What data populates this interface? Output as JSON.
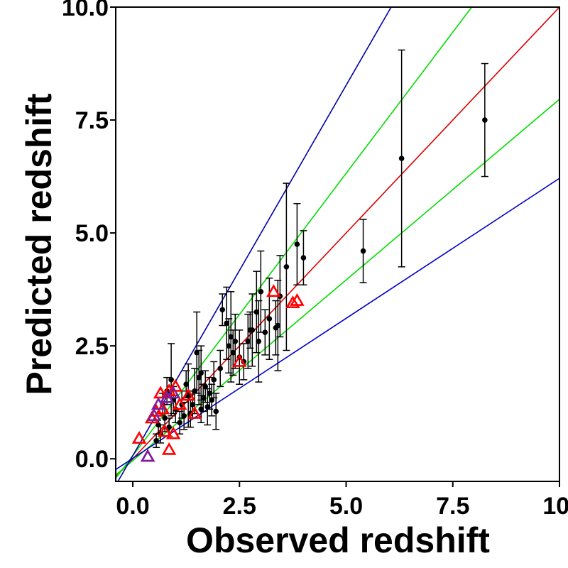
{
  "chart_data": {
    "type": "scatter",
    "xlabel": "Observed redshift",
    "ylabel": "Predicted redshift",
    "xlim": [
      -0.4,
      10.0
    ],
    "ylim": [
      -0.5,
      10.0
    ],
    "xticks": [
      0.0,
      2.5,
      5.0,
      7.5,
      10.0
    ],
    "xtick_labels": [
      "0.0",
      "2.5",
      "5.0",
      "7.5",
      "10."
    ],
    "yticks": [
      0.0,
      2.5,
      5.0,
      7.5,
      10.0
    ],
    "ytick_labels": [
      "0.0",
      "2.5",
      "5.0",
      "7.5",
      "10.0"
    ],
    "grid": false,
    "colors": {
      "points": "#000000",
      "identity_line": "#dd0000",
      "inner_bounds": "#00dd00",
      "outer_bounds": "#0000cc",
      "triangles_red": "#ff0000",
      "triangles_purple": "#7b1fa2"
    },
    "reference_lines": [
      {
        "name": "identity",
        "color": "#dd0000",
        "slope": 1.0,
        "intercept": 0.0
      },
      {
        "name": "upper-inner",
        "color": "#00dd00",
        "slope": 1.25,
        "intercept": 0.07
      },
      {
        "name": "lower-inner",
        "color": "#00dd00",
        "slope": 0.8,
        "intercept": -0.04
      },
      {
        "name": "upper-outer",
        "color": "#0000aa",
        "slope": 1.64,
        "intercept": 0.07
      },
      {
        "name": "lower-outer",
        "color": "#0000cc",
        "slope": 0.62,
        "intercept": 0.01
      }
    ],
    "series": [
      {
        "name": "points-with-errorbars",
        "marker": "circle",
        "x": [
          8.25,
          6.3,
          5.4,
          4.0,
          3.85,
          3.6,
          3.45,
          3.35,
          3.2,
          3.1,
          3.0,
          2.9,
          2.8,
          2.7,
          2.6,
          2.5,
          2.4,
          2.35,
          2.3,
          2.25,
          2.2,
          2.1,
          2.05,
          1.95,
          1.9,
          1.85,
          1.8,
          1.75,
          1.7,
          1.65,
          1.6,
          1.55,
          1.5,
          1.45,
          1.4,
          1.35,
          1.3,
          1.25,
          1.2,
          1.15,
          1.1,
          1.0,
          0.95,
          0.9,
          0.85,
          0.8,
          0.75,
          0.7,
          0.65,
          0.6,
          0.55,
          3.4,
          2.95,
          2.75,
          1.6
        ],
        "y": [
          7.5,
          6.65,
          4.6,
          4.45,
          4.75,
          4.25,
          3.6,
          2.9,
          3.1,
          2.8,
          3.7,
          3.25,
          2.85,
          2.6,
          2.15,
          2.25,
          2.6,
          2.35,
          2.7,
          2.5,
          3.0,
          3.3,
          2.0,
          1.05,
          1.75,
          1.3,
          1.45,
          1.15,
          1.6,
          1.35,
          1.1,
          1.8,
          2.35,
          1.5,
          1.2,
          1.0,
          1.4,
          1.65,
          0.95,
          1.2,
          0.8,
          1.1,
          1.3,
          1.75,
          0.7,
          1.5,
          0.9,
          1.2,
          0.55,
          0.75,
          0.4,
          2.95,
          2.6,
          2.85,
          1.9
        ],
        "yerr": [
          1.25,
          2.4,
          0.7,
          0.6,
          0.9,
          1.85,
          0.9,
          0.6,
          0.9,
          0.5,
          0.9,
          0.9,
          0.8,
          0.6,
          0.4,
          0.6,
          0.6,
          0.5,
          1.0,
          0.6,
          0.8,
          0.35,
          0.4,
          0.4,
          0.4,
          0.35,
          0.35,
          0.4,
          0.35,
          0.3,
          0.3,
          0.6,
          0.9,
          0.5,
          0.3,
          0.3,
          0.7,
          0.3,
          0.3,
          0.3,
          0.25,
          0.3,
          0.3,
          0.8,
          0.2,
          0.3,
          0.3,
          0.25,
          0.2,
          0.2,
          0.15,
          1.0,
          0.9,
          0.4,
          0.6
        ]
      },
      {
        "name": "triangles-red",
        "marker": "triangle",
        "x": [
          0.15,
          0.35,
          0.85,
          0.55,
          0.65,
          0.75,
          0.95,
          1.0,
          1.1,
          1.3,
          1.45,
          0.7,
          2.5,
          3.3,
          3.75,
          3.85,
          0.45,
          0.85
        ],
        "y": [
          0.45,
          0.05,
          0.2,
          1.05,
          1.45,
          0.6,
          0.55,
          1.6,
          1.2,
          1.4,
          1.0,
          1.1,
          2.15,
          3.7,
          3.45,
          3.5,
          0.9,
          1.5
        ]
      },
      {
        "name": "triangles-purple",
        "marker": "triangle",
        "x": [
          0.35,
          0.5,
          0.6,
          0.8,
          0.95
        ],
        "y": [
          0.05,
          0.95,
          1.2,
          1.35,
          1.45
        ]
      }
    ]
  }
}
